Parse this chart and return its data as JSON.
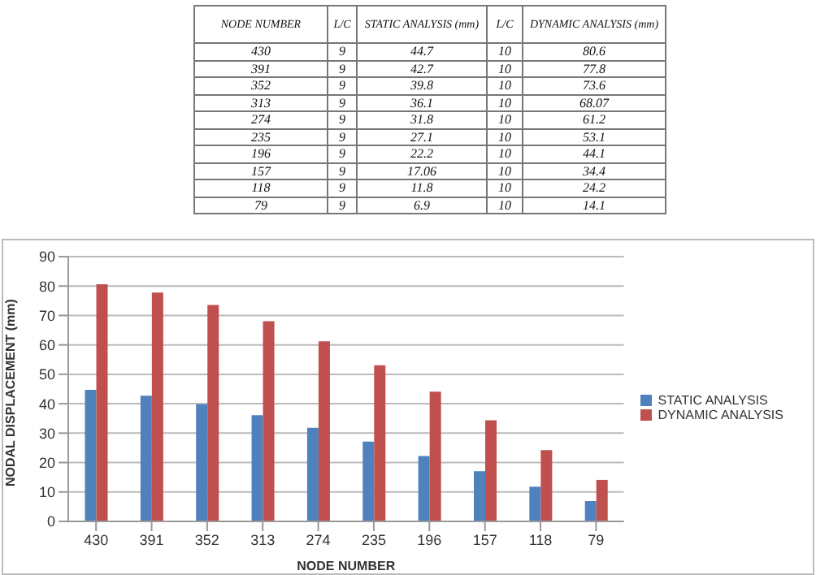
{
  "chart_data": {
    "type": "bar",
    "xlabel": "NODE NUMBER",
    "ylabel": "NODAL DISPLACEMENT (mm)",
    "categories": [
      "430",
      "391",
      "352",
      "313",
      "274",
      "235",
      "196",
      "157",
      "118",
      "79"
    ],
    "series": [
      {
        "name": "STATIC ANALYSIS",
        "color": "#4f81bd",
        "values": [
          44.7,
          42.7,
          39.8,
          36.1,
          31.8,
          27.1,
          22.2,
          17.06,
          11.8,
          6.9
        ]
      },
      {
        "name": "DYNAMIC ANALYSIS",
        "color": "#c0504d",
        "values": [
          80.6,
          77.8,
          73.6,
          68.07,
          61.2,
          53.1,
          44.1,
          34.4,
          24.2,
          14.1
        ]
      }
    ],
    "ylim": [
      0,
      90
    ],
    "yticks": [
      0,
      10,
      20,
      30,
      40,
      50,
      60,
      70,
      80,
      90
    ],
    "grid": "y",
    "legend": "right",
    "annotations": [
      "NODE NUMBER",
      "L/C",
      "STATIC ANALYSIS (mm)",
      "L/C",
      "DYNAMIC ANALYSIS (mm)",
      "9",
      "44.7",
      "10",
      "80.6",
      "9",
      "42.7",
      "10",
      "77.8",
      "9",
      "39.8",
      "10",
      "73.6",
      "9",
      "36.1",
      "10",
      "68.07",
      "9",
      "31.8",
      "10",
      "61.2",
      "9",
      "27.1",
      "10",
      "53.1",
      "9",
      "22.2",
      "10",
      "44.1",
      "9",
      "17.06",
      "10",
      "34.4",
      "9",
      "11.8",
      "10",
      "24.2",
      "9",
      "6.9",
      "10",
      "14.1"
    ]
  }
}
